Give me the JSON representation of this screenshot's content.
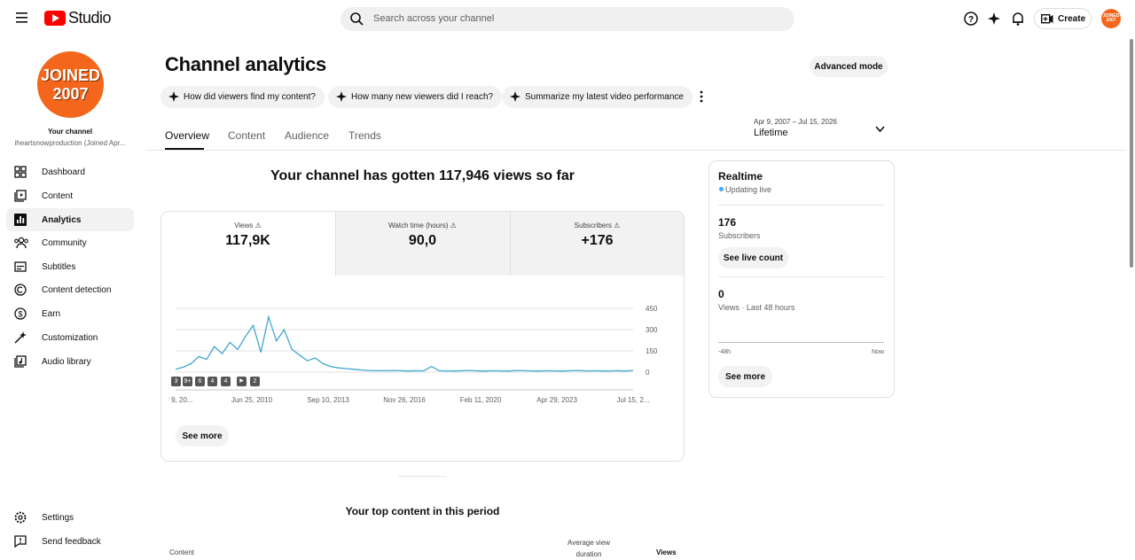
{
  "header": {
    "logo": "Studio",
    "search_placeholder": "Search across your channel",
    "create": "Create",
    "avatar": "JOINED 2007"
  },
  "sidebar": {
    "avatar_lines": [
      "JOINED",
      "2007"
    ],
    "channel_label": "Your channel",
    "channel_name": "iheartsnowproduction (Joined Apr...",
    "nav": [
      "Dashboard",
      "Content",
      "Analytics",
      "Community",
      "Subtitles",
      "Content detection",
      "Earn",
      "Customization",
      "Audio library"
    ],
    "bottom": [
      "Settings",
      "Send feedback"
    ]
  },
  "page": {
    "title": "Channel analytics",
    "advanced": "Advanced mode",
    "suggestions": [
      "How did viewers find my content?",
      "How many new viewers did I reach?",
      "Summarize my latest video performance"
    ],
    "tabs": [
      "Overview",
      "Content",
      "Audience",
      "Trends"
    ],
    "date_range": "Apr 9, 2007 – Jul 15, 2026",
    "period": "Lifetime"
  },
  "summary": "Your channel has gotten 117,946 views so far",
  "metrics": [
    {
      "label": "Views",
      "value": "117,9K"
    },
    {
      "label": "Watch time (hours)",
      "value": "90,0"
    },
    {
      "label": "Subscribers",
      "value": "+176"
    }
  ],
  "chart_data": {
    "type": "line",
    "color": "#41a6cd",
    "values": [
      20,
      35,
      60,
      110,
      90,
      180,
      130,
      210,
      160,
      250,
      330,
      140,
      390,
      220,
      300,
      160,
      120,
      80,
      100,
      60,
      40,
      30,
      25,
      20,
      15,
      12,
      10,
      10,
      12,
      10,
      8,
      10,
      9,
      40,
      10,
      9,
      8,
      10,
      12,
      9,
      8,
      10,
      9,
      8,
      12,
      10,
      9,
      8,
      10,
      9,
      8,
      10,
      12,
      9,
      10,
      8,
      9,
      10,
      8,
      12
    ],
    "ylim": [
      0,
      450
    ],
    "yticks": [
      0,
      150,
      300,
      450
    ],
    "grid": true,
    "x_labels": [
      "Apr 9, 20...",
      "Jun 25, 2010",
      "Sep 10, 2013",
      "Nov 26, 2016",
      "Feb 11, 2020",
      "Apr 29, 2023",
      "Jul 15, 2..."
    ]
  },
  "badges": [
    "3",
    "9+",
    "6",
    "4",
    "4",
    "2"
  ],
  "see_more": "See more",
  "realtime": {
    "title": "Realtime",
    "status": "Updating live",
    "subscribers": "176",
    "subscribers_label": "Subscribers",
    "live_count": "See live count",
    "views": "0",
    "views_label": "Views · Last 48 hours",
    "axis_start": "-48h",
    "axis_end": "Now",
    "see_more": "See more"
  },
  "top_content": {
    "title": "Your top content in this period",
    "columns": [
      "Content",
      "Average view duration",
      "Views"
    ]
  }
}
